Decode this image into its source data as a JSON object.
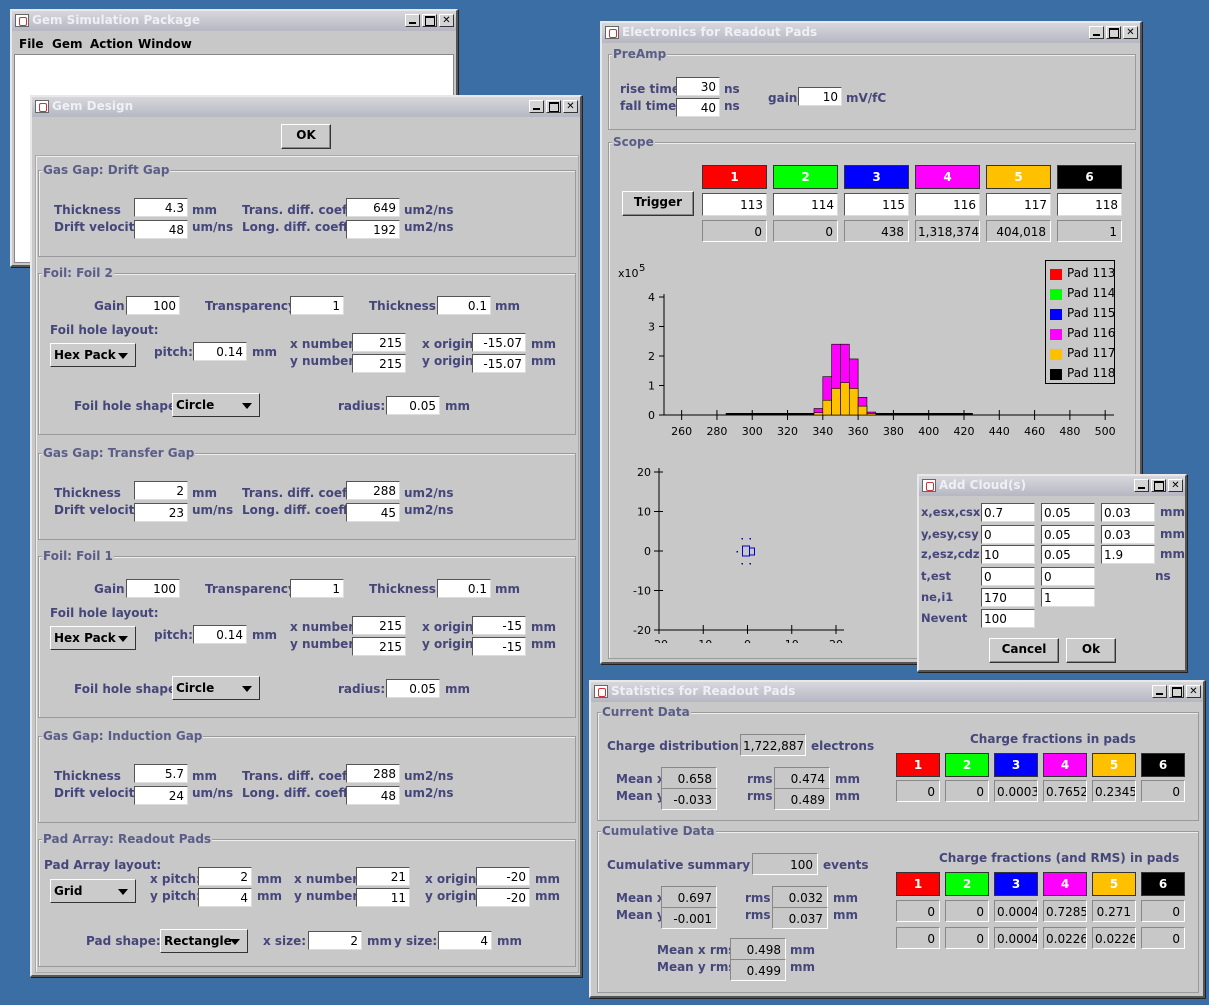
{
  "gsp": {
    "title": "Gem Simulation Package",
    "menu": [
      "File",
      "Gem",
      "Action",
      "Window"
    ]
  },
  "design": {
    "title": "Gem Design",
    "ok": "OK",
    "drift": {
      "title": "Gas Gap: Drift Gap",
      "thickness": "4.3",
      "velocity": "48",
      "trans": "649",
      "long": "192"
    },
    "foil2": {
      "title": "Foil: Foil 2",
      "gain": "100",
      "transparency": "1",
      "thickness": "0.1",
      "layout": "Hex Pack",
      "pitch": "0.14",
      "xnum": "215",
      "ynum": "215",
      "xorig": "-15.07",
      "yorig": "-15.07",
      "shape": "Circle",
      "radius": "0.05"
    },
    "transfer": {
      "title": "Gas Gap: Transfer Gap",
      "thickness": "2",
      "velocity": "23",
      "trans": "288",
      "long": "45"
    },
    "foil1": {
      "title": "Foil: Foil 1",
      "gain": "100",
      "transparency": "1",
      "thickness": "0.1",
      "layout": "Hex Pack",
      "pitch": "0.14",
      "xnum": "215",
      "ynum": "215",
      "xorig": "-15",
      "yorig": "-15",
      "shape": "Circle",
      "radius": "0.05"
    },
    "induction": {
      "title": "Gas Gap: Induction Gap",
      "thickness": "5.7",
      "velocity": "24",
      "trans": "288",
      "long": "48"
    },
    "pad": {
      "title": "Pad Array: Readout Pads",
      "layout_label": "Pad Array layout:",
      "layout": "Grid",
      "xpitch": "2",
      "ypitch": "4",
      "xnum": "21",
      "ynum": "11",
      "xorig": "-20",
      "yorig": "-20",
      "shape_label": "Pad shape:",
      "shape": "Rectangle",
      "xsize": "2",
      "ysize": "4"
    },
    "labels": {
      "thickness": "Thickness",
      "drift_velocity": "Drift velocity",
      "trans": "Trans. diff. coeff.",
      "long": "Long. diff. coeff.",
      "mm": "mm",
      "umns": "um/ns",
      "um2ns": "um2/ns",
      "gain": "Gain",
      "transparency": "Transparency",
      "hole_layout": "Foil hole layout:",
      "pitch": "pitch:",
      "xnumber": "x number",
      "ynumber": "y number",
      "xorigin": "x origin",
      "yorigin": "y origin",
      "hole_shape": "Foil hole shape:",
      "radius": "radius:",
      "xpitch": "x pitch:",
      "ypitch": "y pitch:",
      "xnumber2": "x number:",
      "ynumber2": "y number:",
      "xorigin2": "x origin:",
      "yorigin2": "y origin:",
      "xsize": "x size:",
      "ysize": "y size:"
    }
  },
  "elec": {
    "title": "Electronics for Readout Pads",
    "preamp": {
      "title": "PreAmp",
      "rise_label": "rise time",
      "rise": "30",
      "fall_label": "fall time",
      "fall": "40",
      "ns": "ns",
      "gain_label": "gain",
      "gain": "10",
      "gain_unit": "mV/fC"
    },
    "scope": {
      "title": "Scope",
      "trigger": "Trigger",
      "channels": [
        {
          "n": "1",
          "color": "#ff0000",
          "pad": "113",
          "count": "0"
        },
        {
          "n": "2",
          "color": "#00ff00",
          "pad": "114",
          "count": "0"
        },
        {
          "n": "3",
          "color": "#0000ff",
          "pad": "115",
          "count": "438"
        },
        {
          "n": "4",
          "color": "#ff00ff",
          "pad": "116",
          "count": "1,318,374"
        },
        {
          "n": "5",
          "color": "#ffc000",
          "pad": "117",
          "count": "404,018"
        },
        {
          "n": "6",
          "color": "#000000",
          "pad": "118",
          "count": "1"
        }
      ]
    }
  },
  "chart_data": [
    {
      "type": "bar",
      "multiplier": "x10",
      "exponent": "5",
      "x": [
        330,
        335,
        340,
        345,
        350,
        355,
        360,
        365,
        370
      ],
      "series": [
        {
          "name": "Pad 116",
          "color": "#ff00ff",
          "values": [
            0.02,
            0.22,
            1.3,
            2.4,
            2.4,
            1.9,
            0.6,
            0.1,
            0.01
          ]
        },
        {
          "name": "Pad 117",
          "color": "#ffc000",
          "values": [
            0.02,
            0.08,
            0.5,
            0.9,
            1.1,
            0.9,
            0.3,
            0.05,
            0.0
          ]
        }
      ],
      "legend": [
        "Pad 113",
        "Pad 114",
        "Pad 115",
        "Pad 116",
        "Pad 117",
        "Pad 118"
      ],
      "legend_colors": [
        "#ff0000",
        "#00ff00",
        "#0000ff",
        "#ff00ff",
        "#ffc000",
        "#000000"
      ],
      "xticks": [
        "260",
        "280",
        "300",
        "320",
        "340",
        "360",
        "380",
        "400",
        "420",
        "440",
        "460",
        "480",
        "500"
      ],
      "yticks": [
        "0",
        "1",
        "2",
        "3",
        "4"
      ],
      "xlim": [
        250,
        505
      ],
      "ylim": [
        0,
        4
      ]
    },
    {
      "type": "scatter",
      "x": [
        0
      ],
      "y": [
        0
      ],
      "xticks": [
        "-20",
        "-10",
        "0",
        "10",
        "20"
      ],
      "yticks": [
        "20",
        "10",
        "0",
        "-10",
        "-20"
      ],
      "xlim": [
        -20,
        20
      ],
      "ylim": [
        -20,
        20
      ]
    }
  ],
  "cloud": {
    "title": "Add Cloud(s)",
    "rows": [
      {
        "label": "x,esx,csx",
        "v": [
          "0.7",
          "0.05",
          "0.03"
        ],
        "unit": "mm"
      },
      {
        "label": "y,esy,csy",
        "v": [
          "0",
          "0.05",
          "0.03"
        ],
        "unit": "mm"
      },
      {
        "label": "z,esz,cdz",
        "v": [
          "10",
          "0.05",
          "1.9"
        ],
        "unit": "mm"
      },
      {
        "label": "t,est",
        "v": [
          "0",
          "0"
        ],
        "unit": "ns"
      },
      {
        "label": "ne,i1",
        "v": [
          "170",
          "1"
        ],
        "unit": ""
      },
      {
        "label": "Nevent",
        "v": [
          "100"
        ],
        "unit": ""
      }
    ],
    "cancel": "Cancel",
    "ok": "Ok"
  },
  "stats": {
    "title": "Statistics for Readout Pads",
    "current": {
      "title": "Current Data",
      "dist_label": "Charge distribution for",
      "electrons": "1,722,887",
      "electrons_unit": "electrons",
      "meanx_label": "Mean x",
      "meanx": "0.658",
      "meany_label": "Mean y",
      "meany": "-0.033",
      "rms_label": "rms",
      "rmsx": "0.474",
      "rmsy": "0.489",
      "mm": "mm",
      "fractions_title": "Charge fractions in pads",
      "fractions": [
        "0",
        "0",
        "0.0003",
        "0.7652",
        "0.2345",
        "0"
      ]
    },
    "cumulative": {
      "title": "Cumulative Data",
      "summary_label": "Cumulative summary for",
      "events": "100",
      "events_unit": "events",
      "meanx": "0.697",
      "meany": "-0.001",
      "rmsx": "0.032",
      "rmsy": "0.037",
      "meanxrms_label": "Mean x rms",
      "meanxrms": "0.498",
      "meanyrms_label": "Mean y rms",
      "meanyrms": "0.499",
      "fractions_title": "Charge fractions (and RMS) in pads",
      "fractions": [
        "0",
        "0",
        "0.0004",
        "0.7285",
        "0.271",
        "0"
      ],
      "rms": [
        "0",
        "0",
        "0.0004",
        "0.0226",
        "0.0226",
        "0"
      ]
    }
  }
}
